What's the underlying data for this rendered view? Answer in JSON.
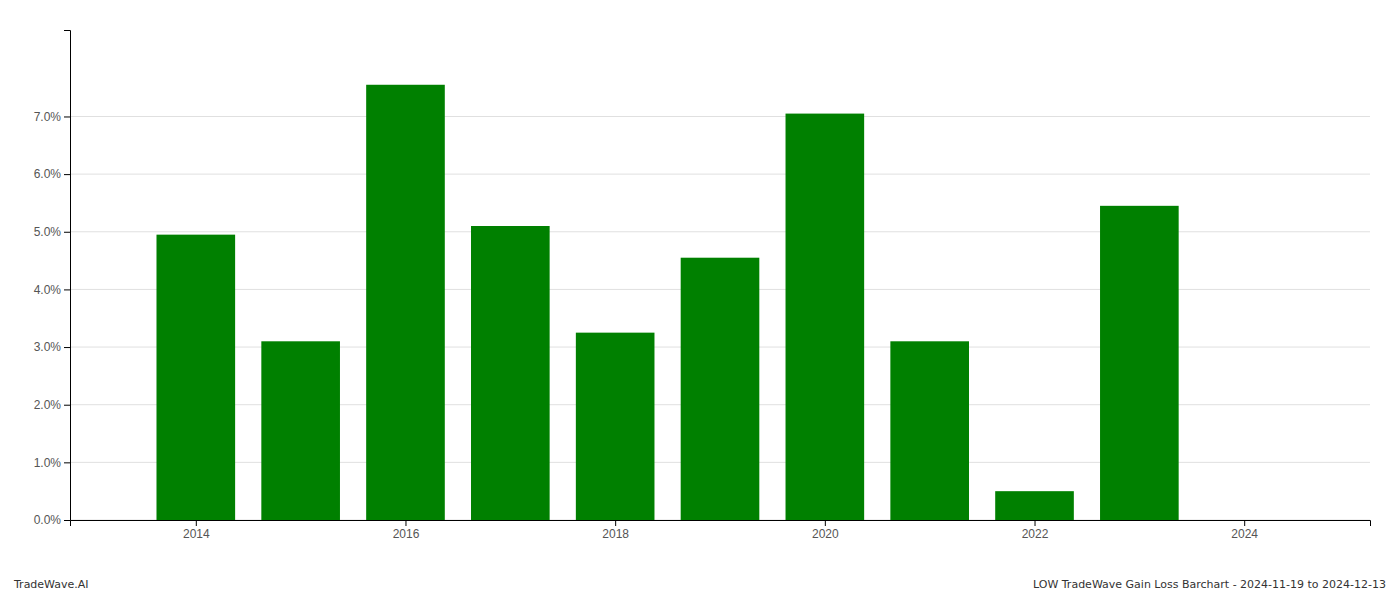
{
  "chart_data": {
    "type": "bar",
    "x": [
      2014,
      2015,
      2016,
      2017,
      2018,
      2019,
      2020,
      2021,
      2022,
      2023
    ],
    "values": [
      0.0495,
      0.031,
      0.0755,
      0.051,
      0.0325,
      0.0455,
      0.0705,
      0.031,
      0.005,
      0.0545
    ],
    "color": "#008000",
    "xlim": [
      2012.8,
      2025.2
    ],
    "xticks": [
      2014,
      2016,
      2018,
      2020,
      2022,
      2024
    ],
    "ylim": [
      0,
      0.085
    ],
    "yticks": [
      {
        "value": 0.0,
        "label": "0.0%"
      },
      {
        "value": 0.01,
        "label": "1.0%"
      },
      {
        "value": 0.02,
        "label": "2.0%"
      },
      {
        "value": 0.03,
        "label": "3.0%"
      },
      {
        "value": 0.04,
        "label": "4.0%"
      },
      {
        "value": 0.05,
        "label": "5.0%"
      },
      {
        "value": 0.06,
        "label": "6.0%"
      },
      {
        "value": 0.07,
        "label": "7.0%"
      }
    ],
    "grid": true,
    "annotations": [
      "TradeWave.AI",
      "LOW TradeWave Gain Loss Barchart - 2024-11-19 to 2024-12-13"
    ]
  }
}
